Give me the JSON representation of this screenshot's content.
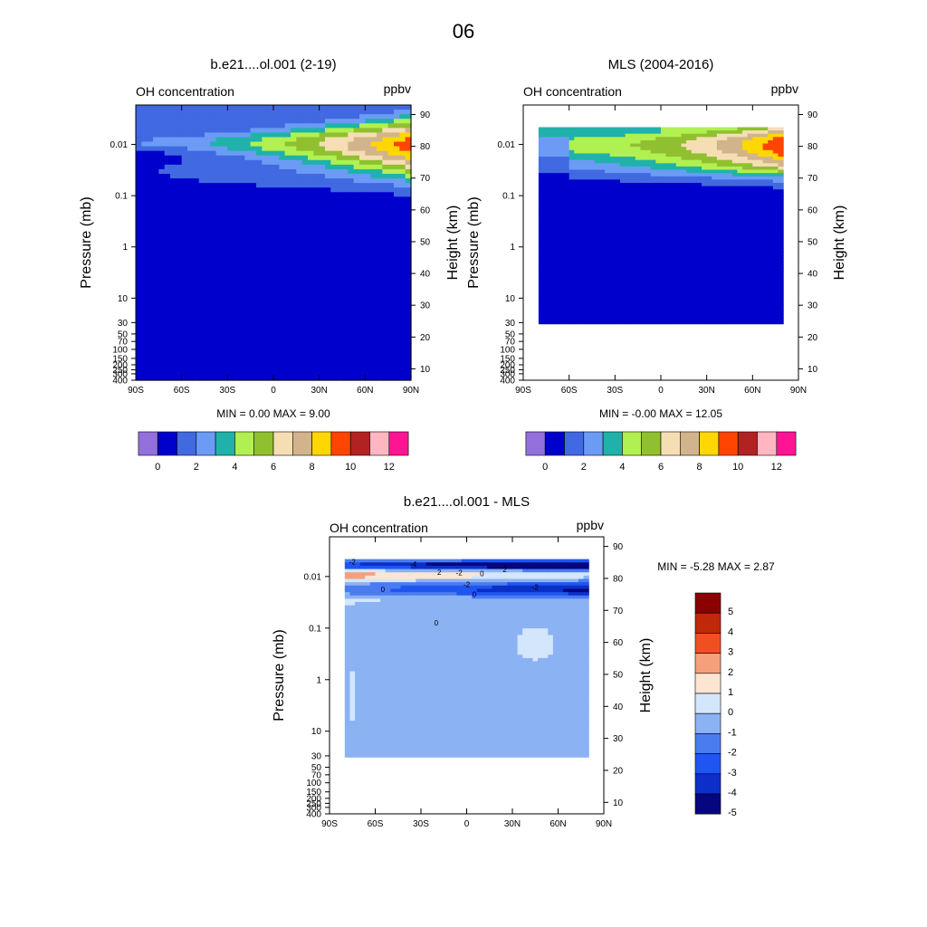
{
  "figure_title": "06",
  "chart_data": [
    {
      "type": "heatmap",
      "title": "b.e21....ol.001 (2-19)",
      "left_string": "OH concentration",
      "right_string": "ppbv",
      "xlabel": "",
      "ylabel": "Pressure (mb)",
      "ylabel_right": "Height (km)",
      "x_ticks": [
        "90S",
        "60S",
        "30S",
        "0",
        "30N",
        "60N",
        "90N"
      ],
      "xlim": [
        -90,
        90
      ],
      "y_ticks": [
        "0.01",
        "0.1",
        "1",
        "10",
        "30",
        "50",
        "70",
        "100",
        "150",
        "200",
        "250",
        "300",
        "400"
      ],
      "ylim_pressure_mb": [
        400,
        0.0017
      ],
      "y_right_ticks": [
        "90",
        "80",
        "70",
        "60",
        "50",
        "40",
        "30",
        "20",
        "10"
      ],
      "min_max_label": "MIN =   0.00  MAX =   9.00",
      "min": 0.0,
      "max": 9.0,
      "colorbar_labels": [
        "0",
        "2",
        "4",
        "6",
        "8",
        "10",
        "12"
      ],
      "levels": [
        0,
        1,
        2,
        3,
        4,
        5,
        6,
        7,
        8,
        9,
        10,
        11,
        12
      ],
      "colors": [
        "#9370db",
        "#0000cd",
        "#4169e1",
        "#6b9bf5",
        "#20b2aa",
        "#b0f050",
        "#90c030",
        "#f5deb3",
        "#d2b48c",
        "#ffd700",
        "#ff4500",
        "#b22222",
        "#ffb6c1",
        "#ff1493"
      ]
    },
    {
      "type": "heatmap",
      "title": "MLS (2004-2016)",
      "left_string": "OH concentration",
      "right_string": "ppbv",
      "xlabel": "",
      "ylabel": "Pressure (mb)",
      "ylabel_right": "Height (km)",
      "x_ticks": [
        "90S",
        "60S",
        "30S",
        "0",
        "30N",
        "60N",
        "90N"
      ],
      "xlim": [
        -90,
        90
      ],
      "y_ticks": [
        "0.01",
        "0.1",
        "1",
        "10",
        "30",
        "50",
        "70",
        "100",
        "150",
        "200",
        "250",
        "300",
        "400"
      ],
      "ylim_pressure_mb": [
        400,
        0.0017
      ],
      "data_lat_range": [
        -80,
        80
      ],
      "data_pressure_range_mb": [
        0.0046,
        31.6
      ],
      "y_right_ticks": [
        "90",
        "80",
        "70",
        "60",
        "50",
        "40",
        "30",
        "20",
        "10"
      ],
      "min_max_label": "MIN =  -0.00  MAX =  12.05",
      "min": -0.0,
      "max": 12.05,
      "colorbar_labels": [
        "0",
        "2",
        "4",
        "6",
        "8",
        "10",
        "12"
      ],
      "levels": [
        0,
        1,
        2,
        3,
        4,
        5,
        6,
        7,
        8,
        9,
        10,
        11,
        12
      ],
      "colors": [
        "#9370db",
        "#0000cd",
        "#4169e1",
        "#6b9bf5",
        "#20b2aa",
        "#b0f050",
        "#90c030",
        "#f5deb3",
        "#d2b48c",
        "#ffd700",
        "#ff4500",
        "#b22222",
        "#ffb6c1",
        "#ff1493"
      ]
    },
    {
      "type": "heatmap",
      "title": "b.e21....ol.001 - MLS",
      "left_string": "OH concentration",
      "right_string": "ppbv",
      "xlabel": "",
      "ylabel": "Pressure (mb)",
      "ylabel_right": "Height (km)",
      "x_ticks": [
        "90S",
        "60S",
        "30S",
        "0",
        "30N",
        "60N",
        "90N"
      ],
      "xlim": [
        -90,
        90
      ],
      "y_ticks": [
        "0.01",
        "0.1",
        "1",
        "10",
        "30",
        "50",
        "70",
        "100",
        "150",
        "200",
        "250",
        "300",
        "400"
      ],
      "ylim_pressure_mb": [
        400,
        0.0017
      ],
      "data_lat_range": [
        -80,
        80
      ],
      "data_pressure_range_mb": [
        0.0046,
        31.6
      ],
      "y_right_ticks": [
        "90",
        "80",
        "70",
        "60",
        "50",
        "40",
        "30",
        "20",
        "10"
      ],
      "min_max_label": "MIN =  -5.28  MAX =   2.87",
      "min": -5.28,
      "max": 2.87,
      "contour_labels": [
        "-2",
        "-4",
        "-2",
        "2",
        "0",
        "2",
        "0",
        "-2",
        "-2",
        "0",
        "0"
      ],
      "colorbar_labels": [
        "5",
        "4",
        "3",
        "2",
        "1",
        "0",
        "-1",
        "-2",
        "-3",
        "-4",
        "-5"
      ],
      "levels": [
        5,
        4,
        3,
        2,
        1,
        0,
        -1,
        -2,
        -3,
        -4,
        -5
      ],
      "colors": [
        "#8b0000",
        "#c0280a",
        "#f05020",
        "#f5a07a",
        "#fde5d2",
        "#d3e6fb",
        "#8bb2f3",
        "#4a7cf0",
        "#1f55f0",
        "#0b2fc8",
        "#06067f"
      ]
    }
  ]
}
